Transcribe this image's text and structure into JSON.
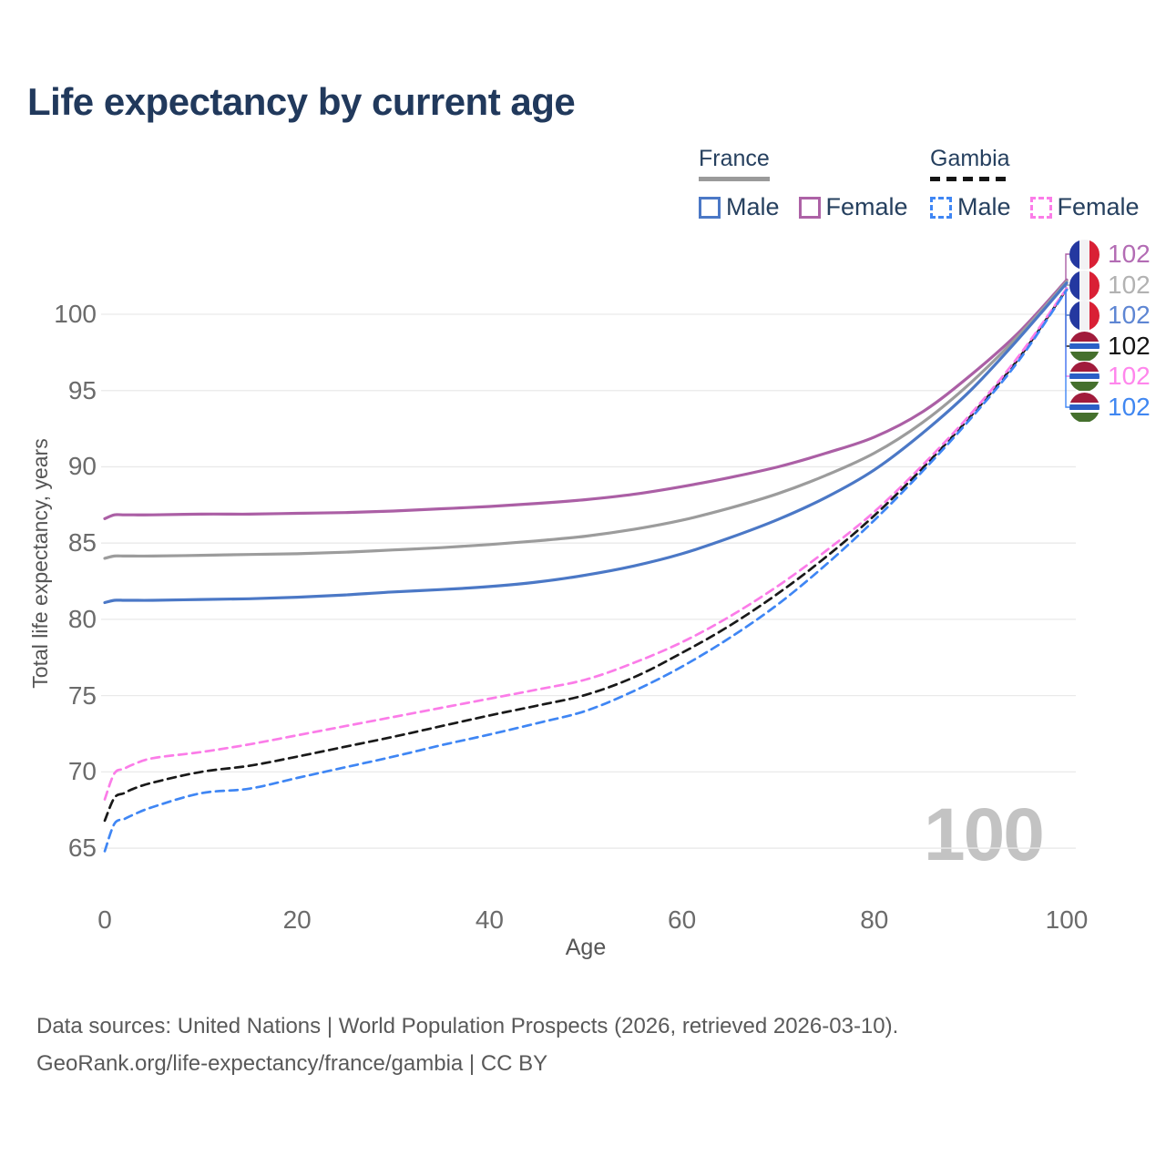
{
  "title": "Life expectancy by current age",
  "watermark": "100",
  "legend": {
    "groups": [
      {
        "label": "France",
        "line_style": "solid",
        "underline_color": "#9a9a9a",
        "items": [
          {
            "label": "Male",
            "color": "#4b78c6",
            "dashed": false
          },
          {
            "label": "Female",
            "color": "#ad62a6",
            "dashed": false
          }
        ]
      },
      {
        "label": "Gambia",
        "line_style": "dashed",
        "underline_color": "#151515",
        "items": [
          {
            "label": "Male",
            "color": "#3f86f4",
            "dashed": true
          },
          {
            "label": "Female",
            "color": "#fb7ce8",
            "dashed": true
          }
        ]
      }
    ]
  },
  "axes": {
    "y_title": "Total life expectancy, years",
    "x_title": "Age",
    "y_ticks": [
      65,
      70,
      75,
      80,
      85,
      90,
      95,
      100
    ],
    "x_ticks": [
      0,
      20,
      40,
      60,
      80,
      100
    ]
  },
  "callouts": [
    {
      "flag": "france",
      "value": "102",
      "color": "#b36cb4"
    },
    {
      "flag": "france",
      "value": "102",
      "color": "#b2b2b2"
    },
    {
      "flag": "france",
      "value": "102",
      "color": "#5e86d3"
    },
    {
      "flag": "gambia",
      "value": "102",
      "color": "#141414"
    },
    {
      "flag": "gambia",
      "value": "102",
      "color": "#ff86ec"
    },
    {
      "flag": "gambia",
      "value": "102",
      "color": "#4087f1"
    }
  ],
  "footer": {
    "line1": "Data sources: United Nations | World Population Prospects (2026, retrieved 2026-03-10).",
    "line2": "GeoRank.org/life-expectancy/france/gambia | CC BY"
  },
  "chart_data": {
    "type": "line",
    "title": "Life expectancy by current age",
    "xlabel": "Age",
    "ylabel": "Total life expectancy, years",
    "xlim": [
      0,
      100
    ],
    "ylim": [
      63.5,
      103
    ],
    "x_ticks": [
      0,
      20,
      40,
      60,
      80,
      100
    ],
    "y_ticks": [
      65,
      70,
      75,
      80,
      85,
      90,
      95,
      100
    ],
    "grid": "horizontal",
    "legend_position": "top-right",
    "x": [
      0,
      1,
      2,
      3,
      5,
      10,
      15,
      20,
      25,
      30,
      35,
      40,
      45,
      50,
      55,
      60,
      65,
      70,
      75,
      80,
      85,
      90,
      95,
      100
    ],
    "series": [
      {
        "name": "France Female",
        "color": "#ab5fa5",
        "dashed": false,
        "end_label": "102",
        "values": [
          86.6,
          86.85,
          86.85,
          86.85,
          86.85,
          86.9,
          86.9,
          86.95,
          87.0,
          87.1,
          87.25,
          87.4,
          87.6,
          87.85,
          88.2,
          88.7,
          89.3,
          90.0,
          90.9,
          91.95,
          93.6,
          96.0,
          98.8,
          102.25
        ]
      },
      {
        "name": "France Both sexes",
        "color": "#9c9c9c",
        "dashed": false,
        "end_label": "102",
        "values": [
          84.0,
          84.15,
          84.15,
          84.15,
          84.15,
          84.2,
          84.25,
          84.3,
          84.4,
          84.55,
          84.7,
          84.9,
          85.15,
          85.45,
          85.9,
          86.5,
          87.3,
          88.25,
          89.45,
          90.9,
          92.9,
          95.5,
          98.6,
          102.15
        ]
      },
      {
        "name": "France Male",
        "color": "#4b78c6",
        "dashed": false,
        "end_label": "102",
        "values": [
          81.1,
          81.25,
          81.25,
          81.25,
          81.25,
          81.3,
          81.35,
          81.45,
          81.6,
          81.8,
          81.95,
          82.15,
          82.45,
          82.9,
          83.5,
          84.3,
          85.35,
          86.55,
          88.0,
          89.8,
          92.2,
          95.0,
          98.4,
          102.05
        ]
      },
      {
        "name": "Gambia Both sexes",
        "color": "#191919",
        "dashed": true,
        "end_label": "102",
        "values": [
          66.8,
          68.3,
          68.6,
          68.9,
          69.3,
          70.0,
          70.4,
          71.0,
          71.65,
          72.3,
          73.0,
          73.7,
          74.35,
          75.05,
          76.2,
          77.8,
          79.6,
          81.7,
          84.1,
          86.8,
          89.9,
          93.3,
          97.1,
          101.65
        ]
      },
      {
        "name": "Gambia Female",
        "color": "#fb7ce8",
        "dashed": true,
        "end_label": "102",
        "values": [
          68.2,
          69.9,
          70.2,
          70.5,
          70.9,
          71.3,
          71.8,
          72.4,
          73.0,
          73.6,
          74.2,
          74.8,
          75.4,
          76.05,
          77.15,
          78.5,
          80.2,
          82.2,
          84.5,
          87.05,
          90.1,
          93.45,
          97.25,
          101.7
        ]
      },
      {
        "name": "Gambia Male",
        "color": "#3f86f4",
        "dashed": true,
        "end_label": "102",
        "values": [
          64.8,
          66.6,
          66.9,
          67.2,
          67.7,
          68.6,
          68.9,
          69.6,
          70.3,
          71.0,
          71.75,
          72.45,
          73.2,
          74.0,
          75.3,
          76.9,
          78.8,
          81.0,
          83.6,
          86.5,
          89.7,
          93.15,
          96.95,
          101.6
        ]
      }
    ]
  }
}
